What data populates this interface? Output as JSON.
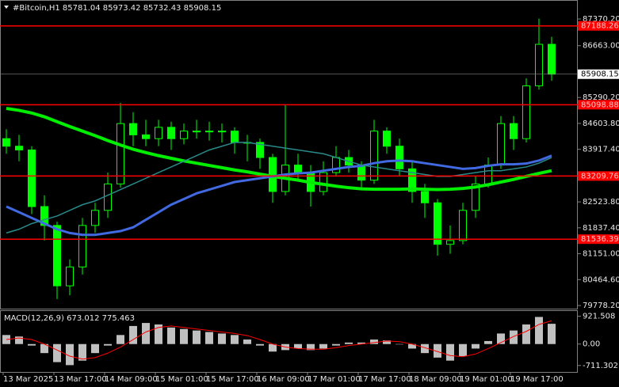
{
  "chart_data": [
    {
      "type": "candlestick",
      "title": "#Bitcoin,H1  85781.04 85973.42 85732.43 85908.15",
      "ylim": [
        79695,
        87790
      ],
      "yticks": [
        {
          "value": 87370.2,
          "label": "87370.20"
        },
        {
          "value": 86663,
          "label": "86663.00"
        },
        {
          "value": 85290.2,
          "label": "85290.20"
        },
        {
          "value": 84603.8,
          "label": "84603.80"
        },
        {
          "value": 83917.4,
          "label": "83917.40"
        },
        {
          "value": 82523.8,
          "label": "82523.80"
        },
        {
          "value": 81837.4,
          "label": "81837.40"
        },
        {
          "value": 81151,
          "label": "81151.00"
        },
        {
          "value": 80464.6,
          "label": "80464.60"
        },
        {
          "value": 79778.2,
          "label": "79778.20"
        }
      ],
      "xticks": [
        {
          "value": 0,
          "label": "13 Mar 2025"
        },
        {
          "value": 4,
          "label": "13 Mar 17:00"
        },
        {
          "value": 8,
          "label": "14 Mar 09:00"
        },
        {
          "value": 12,
          "label": "15 Mar 01:00"
        },
        {
          "value": 16,
          "label": "15 Mar 17:00"
        },
        {
          "value": 20,
          "label": "16 Mar 09:00"
        },
        {
          "value": 24,
          "label": "17 Mar 01:00"
        },
        {
          "value": 28,
          "label": "17 Mar 17:00"
        },
        {
          "value": 32,
          "label": "18 Mar 09:00"
        },
        {
          "value": 36,
          "label": "19 Mar 01:00"
        },
        {
          "value": 40,
          "label": "19 Mar 17:00"
        }
      ],
      "color": "#00ff00",
      "open": [
        84200,
        84000,
        83900,
        82400,
        81900,
        80300,
        80800,
        81900,
        82300,
        83000,
        84600,
        84300,
        84200,
        84500,
        84200,
        84400,
        84400,
        84400,
        84400,
        84100,
        84100,
        83700,
        82800,
        83500,
        83300,
        82800,
        83300,
        83700,
        83500,
        83100,
        84400,
        84000,
        83400,
        82800,
        82500,
        81400,
        81500,
        82300,
        83000,
        83500,
        84600,
        84200,
        85600,
        86700
      ],
      "high": [
        84450,
        84300,
        84000,
        82700,
        82000,
        81000,
        82100,
        82500,
        83300,
        85150,
        84900,
        84700,
        84700,
        84650,
        84600,
        84700,
        84650,
        84600,
        84500,
        84300,
        84200,
        83800,
        85100,
        83800,
        83500,
        83600,
        84000,
        83900,
        83600,
        84700,
        84500,
        84200,
        83600,
        83000,
        82600,
        81900,
        82500,
        83200,
        83700,
        84800,
        84800,
        85800,
        87380,
        86900
      ],
      "low": [
        83800,
        83600,
        82200,
        81500,
        79950,
        80050,
        80600,
        81700,
        82100,
        82900,
        84000,
        84000,
        84000,
        83900,
        84050,
        84200,
        84150,
        84100,
        83800,
        83600,
        83400,
        82500,
        82700,
        83100,
        82400,
        82700,
        83200,
        83300,
        82900,
        83000,
        83800,
        83200,
        82500,
        82100,
        81100,
        81150,
        81400,
        82100,
        82900,
        83400,
        83900,
        84100,
        85500,
        85732.43
      ],
      "close": [
        84000,
        83900,
        82400,
        81900,
        80300,
        80800,
        81900,
        82300,
        83000,
        84600,
        84300,
        84200,
        84500,
        84200,
        84400,
        84400,
        84400,
        84400,
        84100,
        84100,
        83700,
        82800,
        83500,
        83300,
        82800,
        83300,
        83700,
        83500,
        83100,
        84400,
        84000,
        83400,
        82800,
        82500,
        81400,
        81500,
        82300,
        83000,
        83500,
        84600,
        84200,
        85600,
        86700,
        85908.15
      ],
      "series": [
        {
          "color": "#00ee00",
          "width": 4,
          "values": [
            85000,
            84950,
            84880,
            84780,
            84650,
            84520,
            84400,
            84280,
            84150,
            84030,
            83920,
            83830,
            83750,
            83680,
            83610,
            83550,
            83490,
            83430,
            83370,
            83320,
            83260,
            83200,
            83150,
            83100,
            83040,
            82990,
            82940,
            82900,
            82870,
            82860,
            82860,
            82860,
            82870,
            82860,
            82850,
            82860,
            82880,
            82920,
            82980,
            83050,
            83120,
            83200,
            83280,
            83350
          ]
        },
        {
          "color": "#4169e1",
          "width": 3,
          "values": [
            82400,
            82250,
            82100,
            81950,
            81800,
            81700,
            81650,
            81650,
            81700,
            81750,
            81850,
            82050,
            82250,
            82450,
            82600,
            82750,
            82850,
            82950,
            83050,
            83100,
            83150,
            83200,
            83250,
            83280,
            83300,
            83350,
            83400,
            83450,
            83480,
            83550,
            83600,
            83620,
            83600,
            83550,
            83500,
            83450,
            83400,
            83420,
            83480,
            83520,
            83520,
            83540,
            83620,
            83750
          ]
        },
        {
          "color": "#2a8a8a",
          "width": 1.5,
          "values": [
            81700,
            81800,
            81950,
            82050,
            82150,
            82300,
            82450,
            82550,
            82700,
            82850,
            83000,
            83150,
            83300,
            83450,
            83600,
            83750,
            83900,
            84000,
            84100,
            84100,
            84050,
            84000,
            83950,
            83900,
            83850,
            83800,
            83700,
            83600,
            83500,
            83450,
            83400,
            83350,
            83300,
            83250,
            83200,
            83200,
            83250,
            83300,
            83350,
            83350,
            83400,
            83450,
            83550,
            83700
          ]
        }
      ],
      "levels": [
        87188.26,
        85098.88,
        83209.76,
        81536.39
      ],
      "level_color": "#ff0000",
      "current_price": 85908.15
    },
    {
      "type": "macd",
      "title": "MACD(12,26,9) 673.012 775.463",
      "ylim": [
        -900,
        1070
      ],
      "yticks": [
        921.508,
        {
          "value": 0,
          "label": "0.00"
        },
        -711.302
      ],
      "color": "#c0c0c0",
      "values": [
        300,
        250,
        -50,
        -300,
        -600,
        -700,
        -550,
        -300,
        -50,
        300,
        600,
        700,
        650,
        550,
        500,
        450,
        400,
        350,
        300,
        150,
        -50,
        -250,
        -200,
        -150,
        -200,
        -150,
        -50,
        50,
        50,
        150,
        120,
        0,
        -150,
        -300,
        -450,
        -550,
        -400,
        -150,
        100,
        350,
        450,
        650,
        900,
        673.012
      ],
      "series": [
        {
          "color": "#ff0000",
          "values": [
            150,
            200,
            150,
            0,
            -200,
            -400,
            -500,
            -450,
            -300,
            -100,
            150,
            400,
            550,
            600,
            550,
            500,
            450,
            400,
            350,
            280,
            150,
            0,
            -100,
            -150,
            -170,
            -170,
            -120,
            -50,
            0,
            50,
            100,
            80,
            0,
            -120,
            -250,
            -380,
            -420,
            -330,
            -150,
            50,
            250,
            420,
            650,
            775.463
          ]
        }
      ]
    }
  ]
}
